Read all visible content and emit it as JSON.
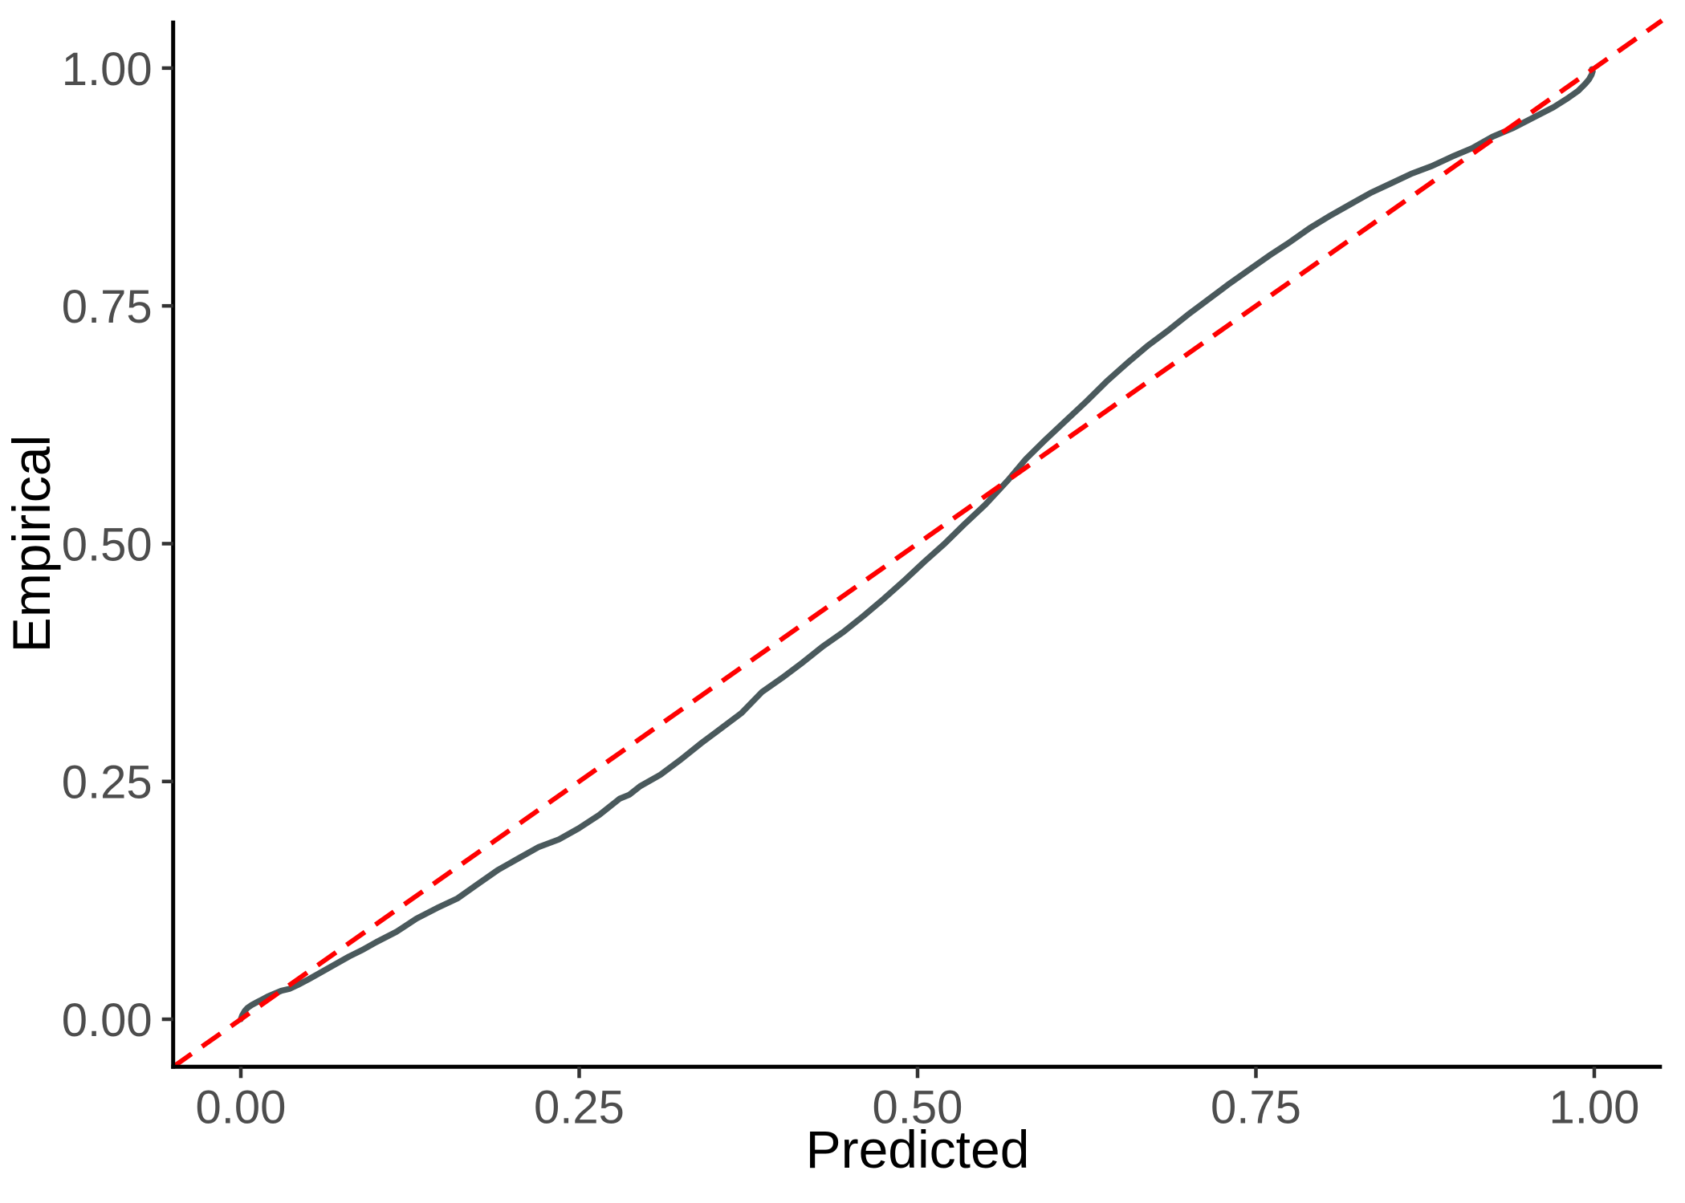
{
  "figure": {
    "background": "#ffffff",
    "kind": "calibration-plot"
  },
  "chart_data": {
    "type": "line",
    "title": "",
    "xlabel": "Predicted",
    "ylabel": "Empirical",
    "xlim": [
      -0.05,
      1.05
    ],
    "ylim": [
      -0.05,
      1.05
    ],
    "grid": false,
    "legend": "none",
    "x_ticks": [
      0.0,
      0.25,
      0.5,
      0.75,
      1.0
    ],
    "x_tick_labels": [
      "0.00",
      "0.25",
      "0.50",
      "0.75",
      "1.00"
    ],
    "y_ticks": [
      0.0,
      0.25,
      0.5,
      0.75,
      1.0
    ],
    "y_tick_labels": [
      "0.00",
      "0.25",
      "0.50",
      "0.75",
      "1.00"
    ],
    "axis_line_color": "#000000",
    "tick_color": "#333333",
    "tick_label_color": "#4d4d4d",
    "series": [
      {
        "name": "calibration-curve",
        "style": "solid",
        "color": "#4a595c",
        "width": 7.5,
        "points": [
          [
            0.0,
            0.0
          ],
          [
            0.001,
            0.004
          ],
          [
            0.003,
            0.009
          ],
          [
            0.005,
            0.012
          ],
          [
            0.008,
            0.015
          ],
          [
            0.012,
            0.018
          ],
          [
            0.016,
            0.021
          ],
          [
            0.02,
            0.024
          ],
          [
            0.025,
            0.027
          ],
          [
            0.03,
            0.03
          ],
          [
            0.036,
            0.032
          ],
          [
            0.042,
            0.036
          ],
          [
            0.05,
            0.042
          ],
          [
            0.06,
            0.05
          ],
          [
            0.07,
            0.058
          ],
          [
            0.08,
            0.066
          ],
          [
            0.09,
            0.073
          ],
          [
            0.1,
            0.081
          ],
          [
            0.115,
            0.092
          ],
          [
            0.13,
            0.106
          ],
          [
            0.145,
            0.117
          ],
          [
            0.16,
            0.127
          ],
          [
            0.175,
            0.142
          ],
          [
            0.19,
            0.157
          ],
          [
            0.205,
            0.169
          ],
          [
            0.22,
            0.181
          ],
          [
            0.235,
            0.189
          ],
          [
            0.25,
            0.201
          ],
          [
            0.265,
            0.215
          ],
          [
            0.28,
            0.232
          ],
          [
            0.287,
            0.236
          ],
          [
            0.295,
            0.245
          ],
          [
            0.31,
            0.257
          ],
          [
            0.325,
            0.273
          ],
          [
            0.34,
            0.29
          ],
          [
            0.355,
            0.306
          ],
          [
            0.37,
            0.322
          ],
          [
            0.385,
            0.344
          ],
          [
            0.4,
            0.359
          ],
          [
            0.415,
            0.375
          ],
          [
            0.43,
            0.392
          ],
          [
            0.445,
            0.407
          ],
          [
            0.46,
            0.424
          ],
          [
            0.475,
            0.442
          ],
          [
            0.49,
            0.461
          ],
          [
            0.505,
            0.481
          ],
          [
            0.52,
            0.5
          ],
          [
            0.535,
            0.521
          ],
          [
            0.55,
            0.541
          ],
          [
            0.567,
            0.567
          ],
          [
            0.58,
            0.589
          ],
          [
            0.595,
            0.61
          ],
          [
            0.61,
            0.63
          ],
          [
            0.625,
            0.65
          ],
          [
            0.64,
            0.671
          ],
          [
            0.655,
            0.69
          ],
          [
            0.67,
            0.708
          ],
          [
            0.685,
            0.724
          ],
          [
            0.7,
            0.741
          ],
          [
            0.715,
            0.757
          ],
          [
            0.73,
            0.773
          ],
          [
            0.745,
            0.788
          ],
          [
            0.76,
            0.803
          ],
          [
            0.775,
            0.817
          ],
          [
            0.79,
            0.832
          ],
          [
            0.805,
            0.845
          ],
          [
            0.82,
            0.857
          ],
          [
            0.835,
            0.869
          ],
          [
            0.85,
            0.879
          ],
          [
            0.865,
            0.889
          ],
          [
            0.88,
            0.897
          ],
          [
            0.895,
            0.907
          ],
          [
            0.91,
            0.916
          ],
          [
            0.925,
            0.928
          ],
          [
            0.94,
            0.937
          ],
          [
            0.955,
            0.948
          ],
          [
            0.97,
            0.959
          ],
          [
            0.98,
            0.968
          ],
          [
            0.988,
            0.976
          ],
          [
            0.993,
            0.983
          ],
          [
            0.996,
            0.988
          ],
          [
            0.998,
            0.993
          ],
          [
            0.9988,
            0.9965
          ],
          [
            0.9982,
            0.9988
          ]
        ]
      },
      {
        "name": "identity-reference",
        "style": "dashed",
        "color": "#ff0000",
        "width": 6,
        "dash": [
          28,
          16
        ],
        "points": [
          [
            -0.05,
            -0.05
          ],
          [
            1.05,
            1.05
          ]
        ]
      }
    ]
  }
}
